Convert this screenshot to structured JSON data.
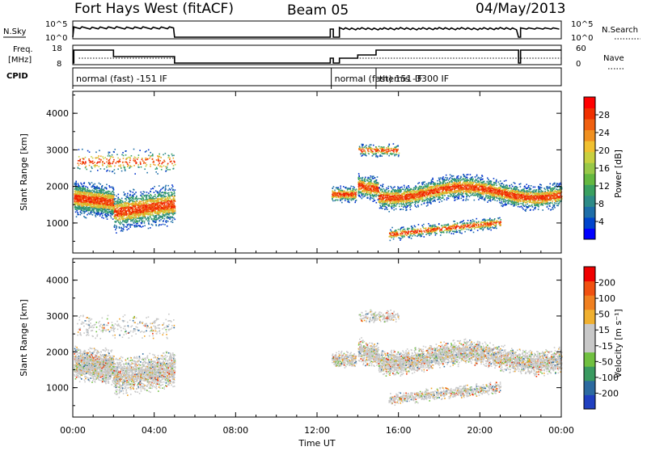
{
  "header": {
    "station": "Fort Hays West (fitACF)",
    "beam": "Beam 05",
    "date": "04/May/2013"
  },
  "strip_labels": {
    "nsky": "N.Sky",
    "nsky_ticks": [
      "10^5",
      "10^0"
    ],
    "nsearch": "N.Search",
    "nsearch_ticks": [
      "10^5",
      "10^0"
    ],
    "freq_line1": "Freq.",
    "freq_line2": "[MHz]",
    "freq_ticks": [
      "18",
      "8"
    ],
    "nave": "Nave",
    "nave_ticks": [
      "60",
      "0"
    ],
    "cpid": "CPID"
  },
  "cpid_segments": [
    {
      "text": "normal (fast) -151 IF",
      "start_h": 0,
      "end_h": 5.0
    },
    {
      "text": "normal (fast) 151 IF",
      "start_h": 12.7,
      "end_h": 14.9
    },
    {
      "text": "themis -3300 IF",
      "start_h": 14.9,
      "end_h": 24
    }
  ],
  "colorbars": {
    "power": {
      "label": "Power [dB]",
      "ticks": [
        "28",
        "24",
        "20",
        "16",
        "12",
        "8",
        "4"
      ],
      "colors": [
        "#0000ff",
        "#0044cc",
        "#1e6ea8",
        "#2e8b87",
        "#3aa060",
        "#64b840",
        "#98c848",
        "#c8d040",
        "#f0c030",
        "#f09020",
        "#f06010",
        "#f03000",
        "#ff0000"
      ]
    },
    "velocity": {
      "label": "Velocity [m s⁻¹]",
      "ticks": [
        "200",
        "100",
        "50",
        "15",
        "-15",
        "-50",
        "-100",
        "-200"
      ],
      "colors": [
        "#2040c0",
        "#2c6aa0",
        "#3a9a60",
        "#70c040",
        "#c8c8c8",
        "#c8c8c8",
        "#f0b030",
        "#f08020",
        "#f05010",
        "#f00000"
      ]
    }
  },
  "chart_data": [
    {
      "type": "heatmap",
      "name": "power",
      "ylabel": "Slant Range [km]",
      "yticks": [
        "4000",
        "3000",
        "2000",
        "1000"
      ],
      "ylim": [
        180,
        4600
      ],
      "xlim_hours": [
        0,
        24
      ]
    },
    {
      "type": "heatmap",
      "name": "velocity",
      "ylabel": "Slant Range [km]",
      "yticks": [
        "4000",
        "3000",
        "2000",
        "1000"
      ],
      "ylim": [
        180,
        4600
      ],
      "xlim_hours": [
        0,
        24
      ]
    }
  ],
  "xaxis": {
    "label": "Time UT",
    "ticks": [
      "00:00",
      "04:00",
      "08:00",
      "12:00",
      "16:00",
      "20:00",
      "00:00"
    ]
  }
}
